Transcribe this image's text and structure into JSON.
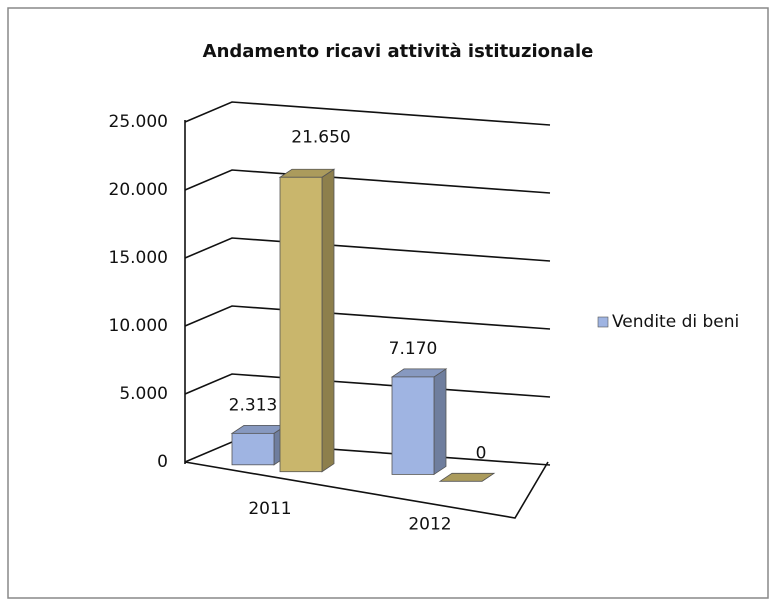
{
  "chart_data": {
    "type": "bar3d",
    "title": "Andamento ricavi attività istituzionale",
    "categories": [
      "2011",
      "2012"
    ],
    "series": [
      {
        "name": "Vendite di beni",
        "color": "#9fb4e2",
        "values": [
          2313,
          7170
        ],
        "value_labels": [
          "2.313",
          "7.170"
        ]
      },
      {
        "color": "#c9b66c",
        "values": [
          21650,
          0
        ],
        "value_labels": [
          "21.650",
          "0"
        ]
      }
    ],
    "ylim": [
      0,
      25000
    ],
    "yticks": [
      0,
      {
        "value": 5000,
        "label": "5.000"
      },
      {
        "value": 10000,
        "label": "10.000"
      },
      {
        "value": 15000,
        "label": "15.000"
      },
      {
        "value": 20000,
        "label": "20.000"
      },
      {
        "value": 25000,
        "label": "25.000"
      }
    ],
    "grid": true,
    "legend": "right"
  }
}
